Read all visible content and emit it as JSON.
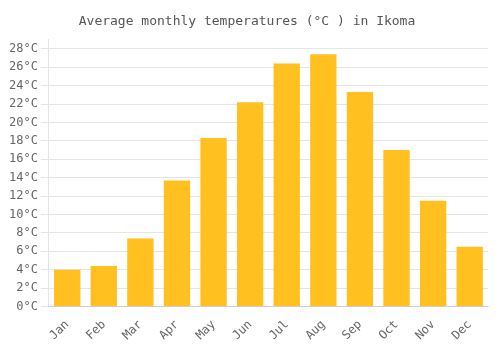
{
  "chart_data": {
    "type": "bar",
    "title": "Average monthly temperatures (°C ) in Ikoma",
    "categories": [
      "Jan",
      "Feb",
      "Mar",
      "Apr",
      "May",
      "Jun",
      "Jul",
      "Aug",
      "Sep",
      "Oct",
      "Nov",
      "Dec"
    ],
    "values": [
      4.0,
      4.4,
      7.4,
      13.7,
      18.3,
      22.2,
      26.4,
      27.4,
      23.3,
      17.0,
      11.5,
      6.5
    ],
    "color": "#FFC020",
    "ylim": [
      0,
      29
    ],
    "yticks": [
      {
        "value": 0,
        "label": "0°C"
      },
      {
        "value": 2,
        "label": "2°C"
      },
      {
        "value": 4,
        "label": "4°C"
      },
      {
        "value": 6,
        "label": "6°C"
      },
      {
        "value": 8,
        "label": "8°C"
      },
      {
        "value": 10,
        "label": "10°C"
      },
      {
        "value": 12,
        "label": "12°C"
      },
      {
        "value": 14,
        "label": "14°C"
      },
      {
        "value": 16,
        "label": "16°C"
      },
      {
        "value": 18,
        "label": "18°C"
      },
      {
        "value": 20,
        "label": "20°C"
      },
      {
        "value": 22,
        "label": "22°C"
      },
      {
        "value": 24,
        "label": "24°C"
      },
      {
        "value": 26,
        "label": "26°C"
      },
      {
        "value": 28,
        "label": "28°C"
      }
    ],
    "grid": true
  }
}
